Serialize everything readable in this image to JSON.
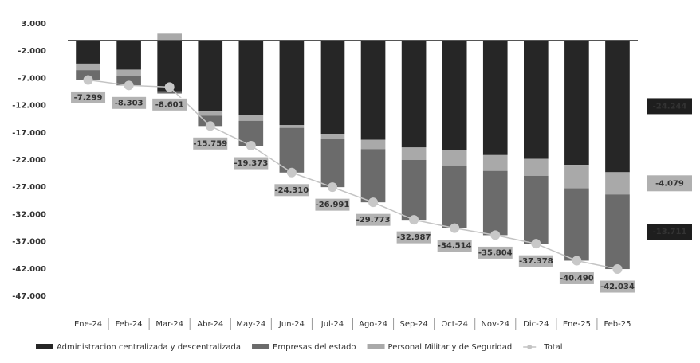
{
  "chart_data": {
    "type": "bar",
    "categories": [
      "Ene-24",
      "Feb-24",
      "Mar-24",
      "Abr-24",
      "May-24",
      "Jun-24",
      "Jul-24",
      "Ago-24",
      "Sep-24",
      "Oct-24",
      "Nov-24",
      "Dic-24",
      "Ene-25",
      "Feb-25"
    ],
    "series": [
      {
        "name": "Administracion centralizada y descentralizada",
        "color": "#262626",
        "values": [
          -4300,
          -5400,
          -9400,
          -13100,
          -13800,
          -15600,
          -17200,
          -18300,
          -19700,
          -20100,
          -21100,
          -21800,
          -22900,
          -24244
        ],
        "value_labels": [
          null,
          null,
          null,
          null,
          null,
          null,
          null,
          null,
          null,
          null,
          null,
          null,
          null,
          "-24.244"
        ]
      },
      {
        "name": "Empresas del estado",
        "color": "#6b6b6b",
        "values": [
          -1800,
          -1700,
          -400,
          -1900,
          -4573,
          -8210,
          -8791,
          -9773,
          -10987,
          -11514,
          -11804,
          -12478,
          -13290,
          -13711
        ],
        "value_labels": [
          null,
          null,
          null,
          null,
          null,
          null,
          null,
          null,
          null,
          null,
          null,
          null,
          null,
          "-13.711"
        ]
      },
      {
        "name": "Personal Militar y de Seguridad",
        "color": "#a9a9a9",
        "values": [
          -1199,
          -1203,
          1199,
          -759,
          -1000,
          -500,
          -1000,
          -1700,
          -2300,
          -2900,
          -2900,
          -3100,
          -4300,
          -4079
        ],
        "value_labels": [
          null,
          null,
          null,
          null,
          null,
          null,
          null,
          null,
          null,
          null,
          null,
          null,
          null,
          "-4.079"
        ]
      },
      {
        "name": "Total",
        "color": "#c4c4c4",
        "type": "line",
        "values": [
          -7299,
          -8303,
          -8601,
          -15759,
          -19373,
          -24310,
          -26991,
          -29773,
          -32987,
          -34514,
          -35804,
          -37378,
          -40490,
          -42034
        ],
        "value_labels": [
          "-7.299",
          "-8.303",
          "-8.601",
          "-15.759",
          "-19.373",
          "-24.310",
          "-26.991",
          "-29.773",
          "-32.987",
          "-34.514",
          "-35.804",
          "-37.378",
          "-40.490",
          "-42.034"
        ]
      }
    ],
    "ylim": [
      3000,
      -47000
    ],
    "yticks": [
      {
        "value": 3000,
        "label": "3.000"
      },
      {
        "value": -2000,
        "label": "-2.000"
      },
      {
        "value": -7000,
        "label": "-7.000"
      },
      {
        "value": -12000,
        "label": "-12.000"
      },
      {
        "value": -17000,
        "label": "-17.000"
      },
      {
        "value": -22000,
        "label": "-22.000"
      },
      {
        "value": -27000,
        "label": "-27.000"
      },
      {
        "value": -32000,
        "label": "-32.000"
      },
      {
        "value": -37000,
        "label": "-37.000"
      },
      {
        "value": -42000,
        "label": "-42.000"
      },
      {
        "value": -47000,
        "label": "-47.000"
      }
    ],
    "grid": false,
    "legend": "bottom"
  }
}
